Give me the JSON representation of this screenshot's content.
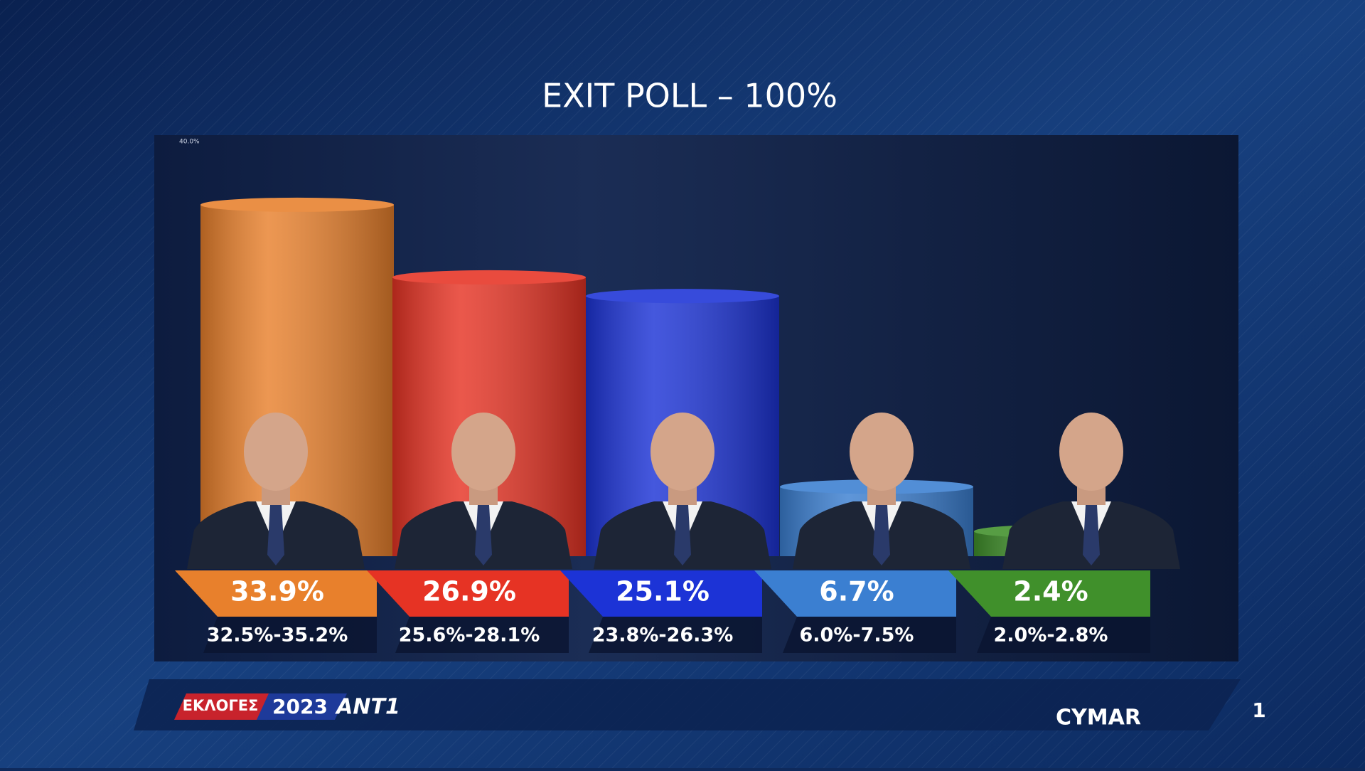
{
  "chart_data": {
    "type": "bar",
    "title": "EXIT POLL – 100%",
    "values": [
      33.9,
      26.9,
      25.1,
      6.7,
      2.4
    ],
    "value_labels": [
      "33.9%",
      "26.9%",
      "25.1%",
      "6.7%",
      "2.4%"
    ],
    "interval_labels": [
      "32.5%-35.2%",
      "25.6%-28.1%",
      "23.8%-26.3%",
      "6.0%-7.5%",
      "2.0%-2.8%"
    ],
    "colors": [
      "#e8802c",
      "#e63324",
      "#1c33d6",
      "#3b7fd1",
      "#40902b"
    ],
    "ylim": [
      0,
      40
    ],
    "yticks": [
      {
        "value": 40,
        "label": "40.0%"
      }
    ]
  },
  "footer": {
    "election": "ΕΚΛΟΓΕΣ",
    "year": "2023",
    "channel": "ANT1",
    "pollster": "CYMAR",
    "page": "1"
  }
}
